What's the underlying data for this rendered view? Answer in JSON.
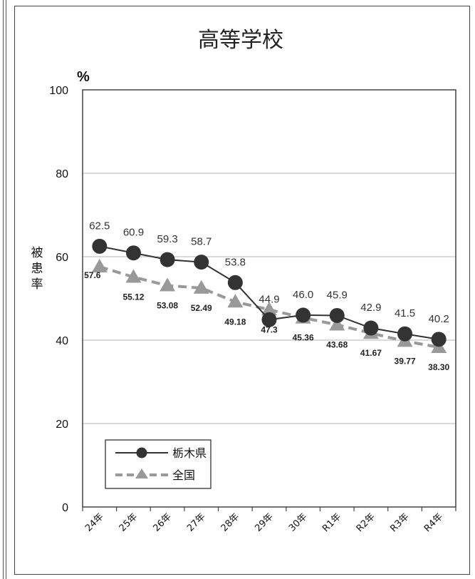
{
  "chart_data": {
    "type": "line",
    "title": "高等学校",
    "unit_label": "%",
    "ylabel": "被患率",
    "xlabel": "",
    "categories": [
      "24年",
      "25年",
      "26年",
      "27年",
      "28年",
      "29年",
      "30年",
      "R1年",
      "R2年",
      "R3年",
      "R4年"
    ],
    "ylim": [
      0,
      100
    ],
    "yticks": [
      0,
      20,
      40,
      60,
      80,
      100
    ],
    "grid": true,
    "legend_position": "bottom-left",
    "series": [
      {
        "name": "栃木県",
        "values": [
          62.5,
          60.9,
          59.3,
          58.7,
          53.8,
          44.9,
          46.0,
          45.9,
          42.9,
          41.5,
          40.2
        ],
        "labels": [
          "62.5",
          "60.9",
          "59.3",
          "58.7",
          "53.8",
          "44.9",
          "46.0",
          "45.9",
          "42.9",
          "41.5",
          "40.2"
        ],
        "color": "#333333",
        "marker": "circle",
        "style": "solid"
      },
      {
        "name": "全国",
        "values": [
          57.6,
          55.12,
          53.08,
          52.49,
          49.18,
          47.3,
          45.36,
          43.68,
          41.67,
          39.77,
          38.3
        ],
        "labels": [
          "57.6",
          "55.12",
          "53.08",
          "52.49",
          "49.18",
          "47.3",
          "45.36",
          "43.68",
          "41.67",
          "39.77",
          "38.30"
        ],
        "color": "#999999",
        "marker": "triangle",
        "style": "dashed"
      }
    ]
  }
}
